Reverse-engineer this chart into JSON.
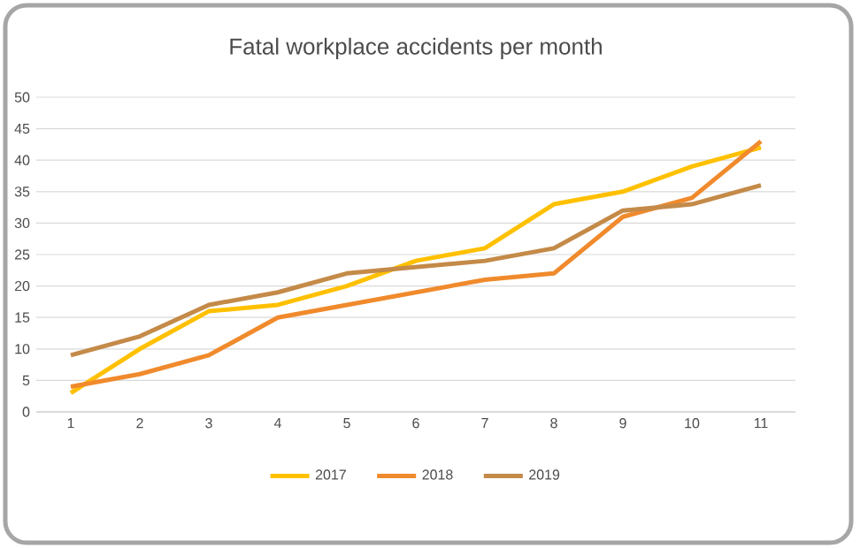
{
  "chart_data": {
    "type": "line",
    "title": "Fatal workplace accidents per month",
    "categories": [
      "1",
      "2",
      "3",
      "4",
      "5",
      "6",
      "7",
      "8",
      "9",
      "10",
      "11"
    ],
    "series": [
      {
        "name": "2017",
        "color": "#ffc000",
        "values": [
          3,
          10,
          16,
          17,
          20,
          24,
          26,
          33,
          35,
          39,
          42
        ]
      },
      {
        "name": "2018",
        "color": "#f08a2c",
        "values": [
          4,
          6,
          9,
          15,
          17,
          19,
          21,
          22,
          31,
          34,
          43
        ]
      },
      {
        "name": "2019",
        "color": "#c48a48",
        "values": [
          9,
          12,
          17,
          19,
          22,
          23,
          24,
          26,
          32,
          33,
          36
        ]
      }
    ],
    "ylim": [
      0,
      50
    ],
    "yticks": [
      0,
      5,
      10,
      15,
      20,
      25,
      30,
      35,
      40,
      45,
      50
    ],
    "grid": "y",
    "legend": "bottom"
  }
}
